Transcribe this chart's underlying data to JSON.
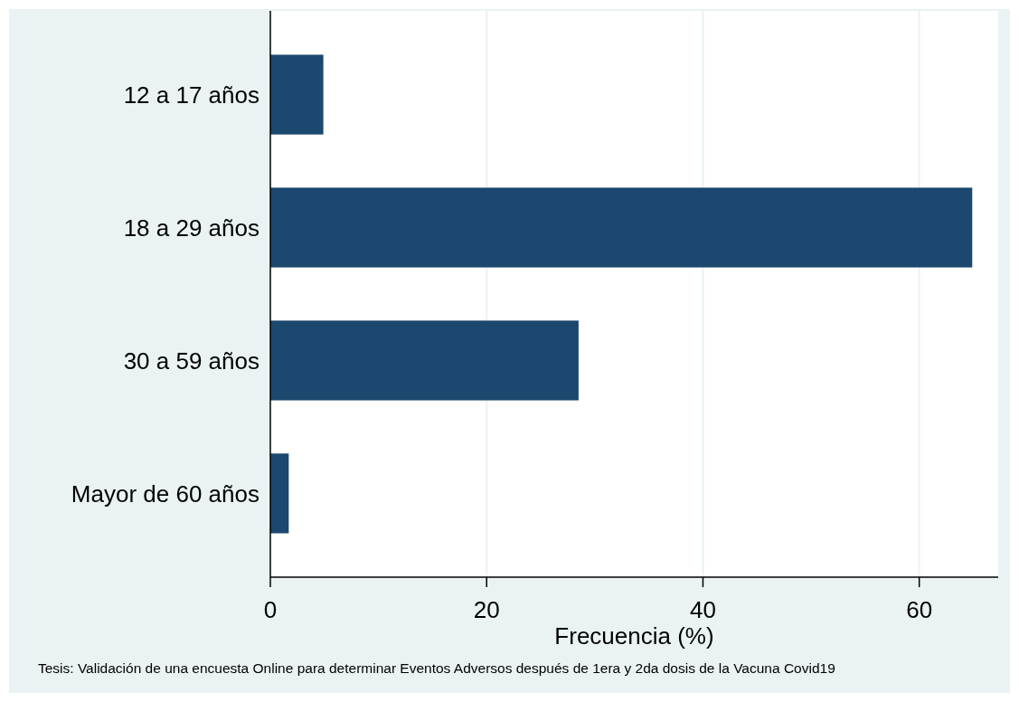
{
  "chart_data": {
    "type": "bar",
    "orientation": "horizontal",
    "categories": [
      "12 a 17 años",
      "18 a 29 años",
      "30 a 59 años",
      "Mayor de 60 años"
    ],
    "values": [
      4.9,
      64.9,
      28.5,
      1.7
    ],
    "color": "#1c476e",
    "xlim": [
      0,
      67.3
    ],
    "xticks": [
      0,
      20,
      40,
      60
    ],
    "grid": "x",
    "xlabel": "Frecuencia (%)",
    "annotations": [
      "Tesis: Validación de una encuesta Online para determinar Eventos Adversos después de 1era y 2da dosis de la Vacuna Covid19"
    ]
  }
}
